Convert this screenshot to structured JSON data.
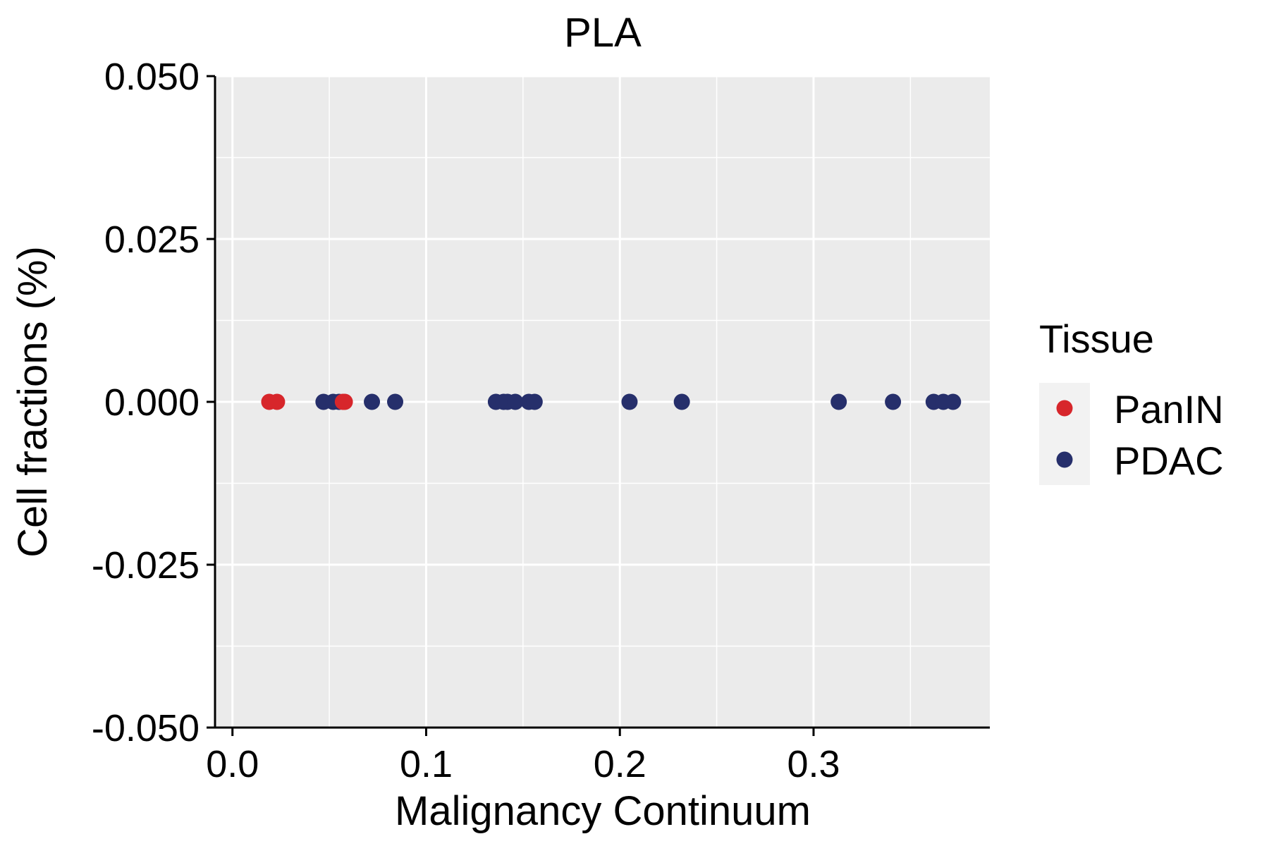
{
  "chart_data": {
    "type": "scatter",
    "title": "PLA",
    "xlabel": "Malignancy Continuum",
    "ylabel": "Cell fractions (%)",
    "xlim": [
      -0.009,
      0.391
    ],
    "ylim": [
      -0.05,
      0.05
    ],
    "x_ticks": [
      0.0,
      0.1,
      0.2,
      0.3
    ],
    "x_tick_labels": [
      "0.0",
      "0.1",
      "0.2",
      "0.3"
    ],
    "y_ticks": [
      -0.05,
      -0.025,
      0.0,
      0.025,
      0.05
    ],
    "y_tick_labels": [
      "-0.050",
      "-0.025",
      "0.000",
      "0.025",
      "0.050"
    ],
    "grid": true,
    "legend": {
      "title": "Tissue",
      "position": "right",
      "entries": [
        {
          "name": "PanIN",
          "color": "#d7262b"
        },
        {
          "name": "PDAC",
          "color": "#262f6b"
        }
      ]
    },
    "series": [
      {
        "name": "PDAC",
        "color": "#262f6b",
        "x": [
          0.047,
          0.052,
          0.055,
          0.072,
          0.084,
          0.136,
          0.14,
          0.142,
          0.146,
          0.153,
          0.156,
          0.205,
          0.232,
          0.313,
          0.341,
          0.362,
          0.367,
          0.372
        ],
        "y": [
          0,
          0,
          0,
          0,
          0,
          0,
          0,
          0,
          0,
          0,
          0,
          0,
          0,
          0,
          0,
          0,
          0,
          0
        ]
      },
      {
        "name": "PanIN",
        "color": "#d7262b",
        "x": [
          0.019,
          0.023,
          0.057,
          0.058
        ],
        "y": [
          0,
          0,
          0,
          0
        ]
      }
    ]
  }
}
